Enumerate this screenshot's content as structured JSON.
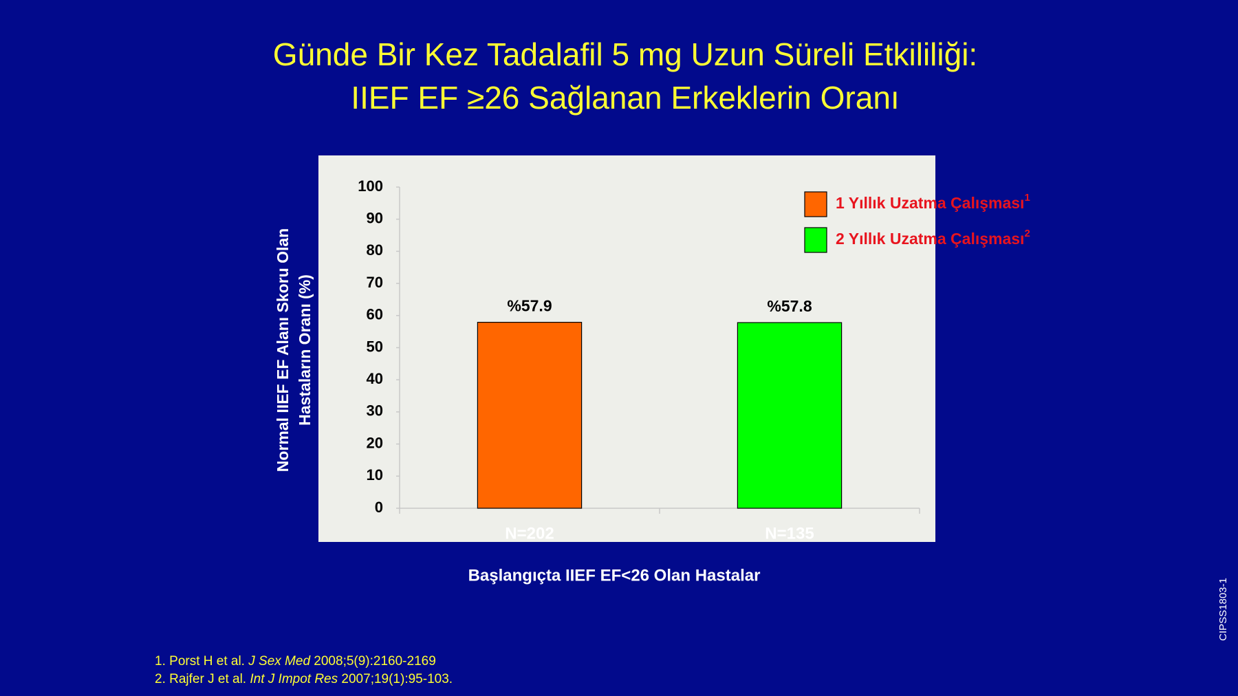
{
  "chart_data": {
    "type": "bar",
    "title": [
      "Günde Bir Kez Tadalafil 5 mg Uzun Süreli Etkililiği:",
      "IIEF EF ≥26 Sağlanan Erkeklerin Oranı"
    ],
    "y_label": [
      "Normal IIEF EF Alanı Skoru Olan",
      "Hastaların Oranı (%)"
    ],
    "x_label": "Başlangıçta IIEF EF<26 Olan Hastalar",
    "categories": [
      "N=202",
      "N=135"
    ],
    "series": [
      {
        "name": "1 Yıllık Uzatma Çalışması",
        "footnote": "1",
        "color": "#ff6600",
        "values": [
          57.9,
          null
        ],
        "value_labels": [
          "%57.9",
          null
        ]
      },
      {
        "name": "2 Yıllık Uzatma Çalışması",
        "footnote": "2",
        "color": "#00ff00",
        "values": [
          null,
          57.8
        ],
        "value_labels": [
          null,
          "%57.8"
        ]
      }
    ],
    "ylim": [
      0,
      100
    ],
    "yticks": [
      0,
      10,
      20,
      30,
      40,
      50,
      60,
      70,
      80,
      90,
      100
    ],
    "grid": false,
    "legend": "top-right"
  },
  "references": [
    {
      "number": "1.",
      "authors": "Porst H et al.",
      "journal": "J Sex Med",
      "details": "2008;5(9):2160-2169"
    },
    {
      "number": "2.",
      "authors": "Rajfer J et al.",
      "journal": "Int J Impot Res",
      "details": "2007;19(1):95-103."
    }
  ],
  "code": "CIPSS1803-1"
}
